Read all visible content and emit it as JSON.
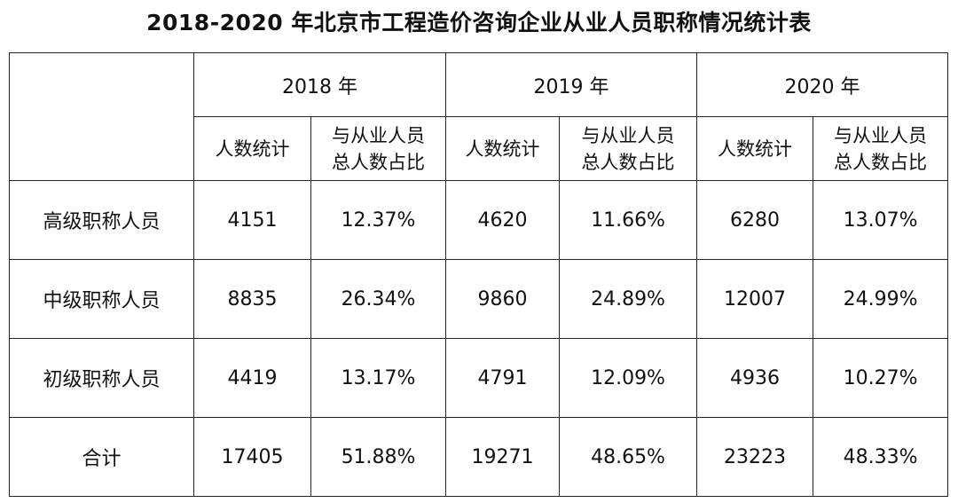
{
  "title": "2018-2020 年北京市工程造价咨询企业从业人员职称情况统计表",
  "years": [
    "2018 年",
    "2019 年",
    "2020 年"
  ],
  "sub_headers": {
    "count": "人数统计",
    "ratio_line1": "与从业人员",
    "ratio_line2": "总人数占比"
  },
  "rows": [
    {
      "label": "高级职称人员",
      "cells": [
        "4151",
        "12.37%",
        "4620",
        "11.66%",
        "6280",
        "13.07%"
      ]
    },
    {
      "label": "中级职称人员",
      "cells": [
        "8835",
        "26.34%",
        "9860",
        "24.89%",
        "12007",
        "24.99%"
      ]
    },
    {
      "label": "初级职称人员",
      "cells": [
        "4419",
        "13.17%",
        "4791",
        "12.09%",
        "4936",
        "10.27%"
      ]
    },
    {
      "label": "合计",
      "cells": [
        "17405",
        "51.88%",
        "19271",
        "48.65%",
        "23223",
        "48.33%"
      ]
    }
  ]
}
